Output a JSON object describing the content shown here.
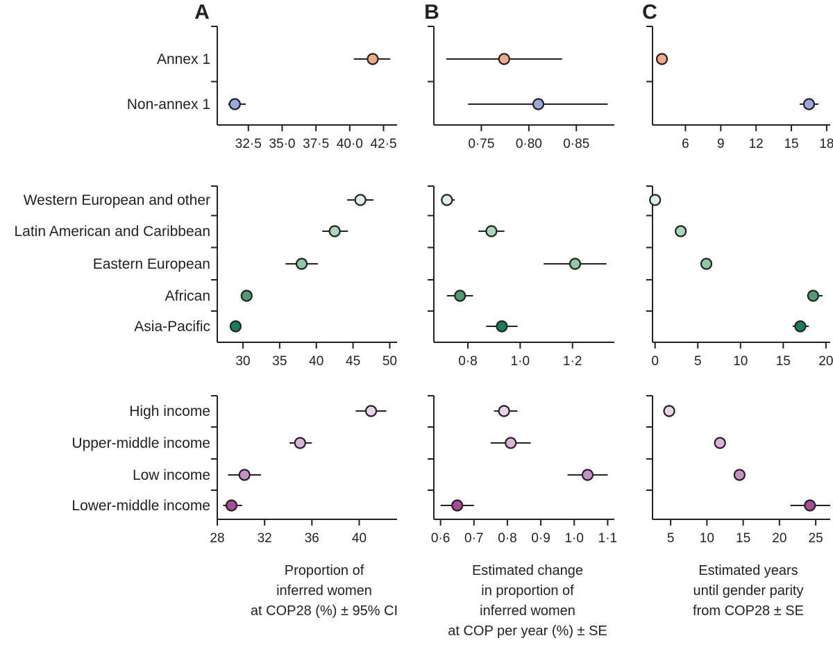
{
  "panel_letters": [
    "A",
    "B",
    "C"
  ],
  "colors": {
    "annex1": "#f4a98c",
    "non_annex1": "#9aa8dc",
    "western_european": "#dcefe6",
    "latin_american": "#a5d8bb",
    "eastern_european": "#8ccaa5",
    "african": "#4f9c74",
    "asia_pacific": "#177f56",
    "high_income": "#ecd3ea",
    "upper_middle_income": "#dcb1db",
    "low_income": "#c98fc7",
    "lower_middle_income": "#a54d98"
  },
  "chart_data": [
    {
      "type": "dot-errorbar",
      "group": "annex",
      "categories": [
        "Annex 1",
        "Non-annex 1"
      ],
      "panels": [
        {
          "letter": "A",
          "xlim": [
            30.2,
            43.5
          ],
          "ticks": [
            32.5,
            35.0,
            37.5,
            40.0,
            42.5
          ],
          "tick_labels": [
            "32·5",
            "35·0",
            "37·5",
            "40·0",
            "42·5"
          ],
          "points": [
            {
              "category": "Annex 1",
              "value": 41.7,
              "low": 40.3,
              "high": 43.0
            },
            {
              "category": "Non-annex 1",
              "value": 31.5,
              "low": 31.0,
              "high": 32.3
            }
          ]
        },
        {
          "letter": "B",
          "xlim": [
            0.7,
            0.89
          ],
          "ticks": [
            0.75,
            0.8,
            0.85
          ],
          "tick_labels": [
            "0·75",
            "0·80",
            "0·85"
          ],
          "points": [
            {
              "category": "Annex 1",
              "value": 0.774,
              "low": 0.713,
              "high": 0.835
            },
            {
              "category": "Non-annex 1",
              "value": 0.81,
              "low": 0.736,
              "high": 0.883
            }
          ]
        },
        {
          "letter": "C",
          "xlim": [
            3.2,
            18.3
          ],
          "ticks": [
            6,
            9,
            12,
            15,
            18
          ],
          "tick_labels": [
            "6",
            "9",
            "12",
            "15",
            "18"
          ],
          "points": [
            {
              "category": "Annex 1",
              "value": 4.0,
              "low": 4.0,
              "high": 4.0
            },
            {
              "category": "Non-annex 1",
              "value": 16.5,
              "low": 15.7,
              "high": 17.3
            }
          ]
        }
      ]
    },
    {
      "type": "dot-errorbar",
      "group": "region",
      "categories": [
        "Western European and other",
        "Latin American and Caribbean",
        "Eastern European",
        "African",
        "Asia-Pacific"
      ],
      "panels": [
        {
          "letter": "A",
          "xlim": [
            26.5,
            51.0
          ],
          "ticks": [
            30,
            35,
            40,
            45,
            50
          ],
          "tick_labels": [
            "30",
            "35",
            "40",
            "45",
            "50"
          ],
          "points": [
            {
              "category": "Western European and other",
              "value": 46.0,
              "low": 44.2,
              "high": 47.8
            },
            {
              "category": "Latin American and Caribbean",
              "value": 42.5,
              "low": 40.8,
              "high": 44.3
            },
            {
              "category": "Eastern European",
              "value": 38.0,
              "low": 35.8,
              "high": 40.2
            },
            {
              "category": "African",
              "value": 30.5,
              "low": 29.9,
              "high": 31.1
            },
            {
              "category": "Asia-Pacific",
              "value": 29.0,
              "low": 28.3,
              "high": 29.7
            }
          ]
        },
        {
          "letter": "B",
          "xlim": [
            0.67,
            1.36
          ],
          "ticks": [
            0.8,
            1.0,
            1.2
          ],
          "tick_labels": [
            "0·8",
            "1·0",
            "1·2"
          ],
          "points": [
            {
              "category": "Western European and other",
              "value": 0.72,
              "low": 0.7,
              "high": 0.75
            },
            {
              "category": "Latin American and Caribbean",
              "value": 0.89,
              "low": 0.84,
              "high": 0.94
            },
            {
              "category": "Eastern European",
              "value": 1.21,
              "low": 1.09,
              "high": 1.33
            },
            {
              "category": "African",
              "value": 0.77,
              "low": 0.72,
              "high": 0.82
            },
            {
              "category": "Asia-Pacific",
              "value": 0.93,
              "low": 0.87,
              "high": 0.99
            }
          ]
        },
        {
          "letter": "C",
          "xlim": [
            -0.3,
            20.5
          ],
          "ticks": [
            0,
            5,
            10,
            15,
            20
          ],
          "tick_labels": [
            "0",
            "5",
            "10",
            "15",
            "20"
          ],
          "points": [
            {
              "category": "Western European and other",
              "value": 0.0,
              "low": 0.0,
              "high": 0.0
            },
            {
              "category": "Latin American and Caribbean",
              "value": 3.0,
              "low": 3.0,
              "high": 3.0
            },
            {
              "category": "Eastern European",
              "value": 6.0,
              "low": 6.0,
              "high": 6.0
            },
            {
              "category": "African",
              "value": 18.5,
              "low": 17.8,
              "high": 19.6
            },
            {
              "category": "Asia-Pacific",
              "value": 17.0,
              "low": 16.1,
              "high": 18.0
            }
          ]
        }
      ]
    },
    {
      "type": "dot-errorbar",
      "group": "income",
      "categories": [
        "High income",
        "Upper-middle income",
        "Low income",
        "Lower-middle income"
      ],
      "panels": [
        {
          "letter": "A",
          "xlim": [
            28.0,
            43.2
          ],
          "ticks": [
            28,
            32,
            36,
            40
          ],
          "tick_labels": [
            "28",
            "32",
            "36",
            "40"
          ],
          "points": [
            {
              "category": "High income",
              "value": 41.0,
              "low": 39.7,
              "high": 42.3
            },
            {
              "category": "Upper-middle income",
              "value": 35.0,
              "low": 34.1,
              "high": 36.0
            },
            {
              "category": "Low income",
              "value": 30.3,
              "low": 28.9,
              "high": 31.7
            },
            {
              "category": "Lower-middle income",
              "value": 29.2,
              "low": 28.5,
              "high": 30.1
            }
          ]
        },
        {
          "letter": "B",
          "xlim": [
            0.58,
            1.12
          ],
          "ticks": [
            0.6,
            0.7,
            0.8,
            0.9,
            1.0,
            1.1
          ],
          "tick_labels": [
            "0·6",
            "0·7",
            "0·8",
            "0·9",
            "1·0",
            "1·1"
          ],
          "points": [
            {
              "category": "High income",
              "value": 0.79,
              "low": 0.76,
              "high": 0.83
            },
            {
              "category": "Upper-middle income",
              "value": 0.81,
              "low": 0.75,
              "high": 0.87
            },
            {
              "category": "Low income",
              "value": 1.04,
              "low": 0.98,
              "high": 1.1
            },
            {
              "category": "Lower-middle income",
              "value": 0.65,
              "low": 0.6,
              "high": 0.7
            }
          ]
        },
        {
          "letter": "C",
          "xlim": [
            2.5,
            27.0
          ],
          "ticks": [
            5,
            10,
            15,
            20,
            25
          ],
          "tick_labels": [
            "5",
            "10",
            "15",
            "20",
            "25"
          ],
          "points": [
            {
              "category": "High income",
              "value": 4.8,
              "low": 4.8,
              "high": 4.8
            },
            {
              "category": "Upper-middle income",
              "value": 11.8,
              "low": 11.2,
              "high": 12.3
            },
            {
              "category": "Low income",
              "value": 14.5,
              "low": 13.9,
              "high": 15.2
            },
            {
              "category": "Lower-middle income",
              "value": 24.2,
              "low": 21.5,
              "high": 27.0
            }
          ]
        }
      ]
    }
  ],
  "xlabels": [
    [
      "Proportion of",
      "inferred women",
      "at COP28 (%) ± 95% CI"
    ],
    [
      "Estimated change",
      "in proportion of",
      "inferred women",
      "at COP per year (%) ± SE"
    ],
    [
      "Estimated years",
      "until gender parity",
      "from COP28 ± SE"
    ]
  ]
}
